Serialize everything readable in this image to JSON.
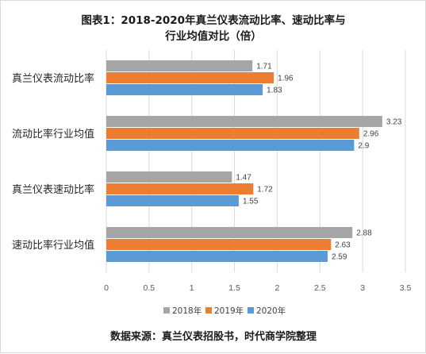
{
  "chart_data": {
    "type": "bar",
    "orientation": "horizontal",
    "title_lines": [
      "图表1：2018-2020年真兰仪表流动比率、速动比率与",
      "行业均值对比（倍）"
    ],
    "categories": [
      "真兰仪表流动比率",
      "流动比率行业均值",
      "真兰仪表速动比率",
      "速动比率行业均值"
    ],
    "series": [
      {
        "name": "2018年",
        "color": "#a5a5a5",
        "values": [
          1.71,
          3.23,
          1.47,
          2.88
        ],
        "value_labels": [
          "1.71",
          "3.23",
          "1.47",
          "2.88"
        ]
      },
      {
        "name": "2019年",
        "color": "#ed7d31",
        "values": [
          1.96,
          2.96,
          1.72,
          2.63
        ],
        "value_labels": [
          "1.96",
          "2.96",
          "1.72",
          "2.63"
        ]
      },
      {
        "name": "2020年",
        "color": "#5b9bd5",
        "values": [
          1.83,
          2.9,
          1.55,
          2.59
        ],
        "value_labels": [
          "1.83",
          "2.9",
          "1.55",
          "2.59"
        ]
      }
    ],
    "xlim": [
      0,
      3.5
    ],
    "xticks": [
      "0",
      "0.5",
      "1",
      "1.5",
      "2",
      "2.5",
      "3",
      "3.5"
    ],
    "grid": true,
    "legend_position": "bottom"
  },
  "source_note": "数据来源：真兰仪表招股书，时代商学院整理"
}
